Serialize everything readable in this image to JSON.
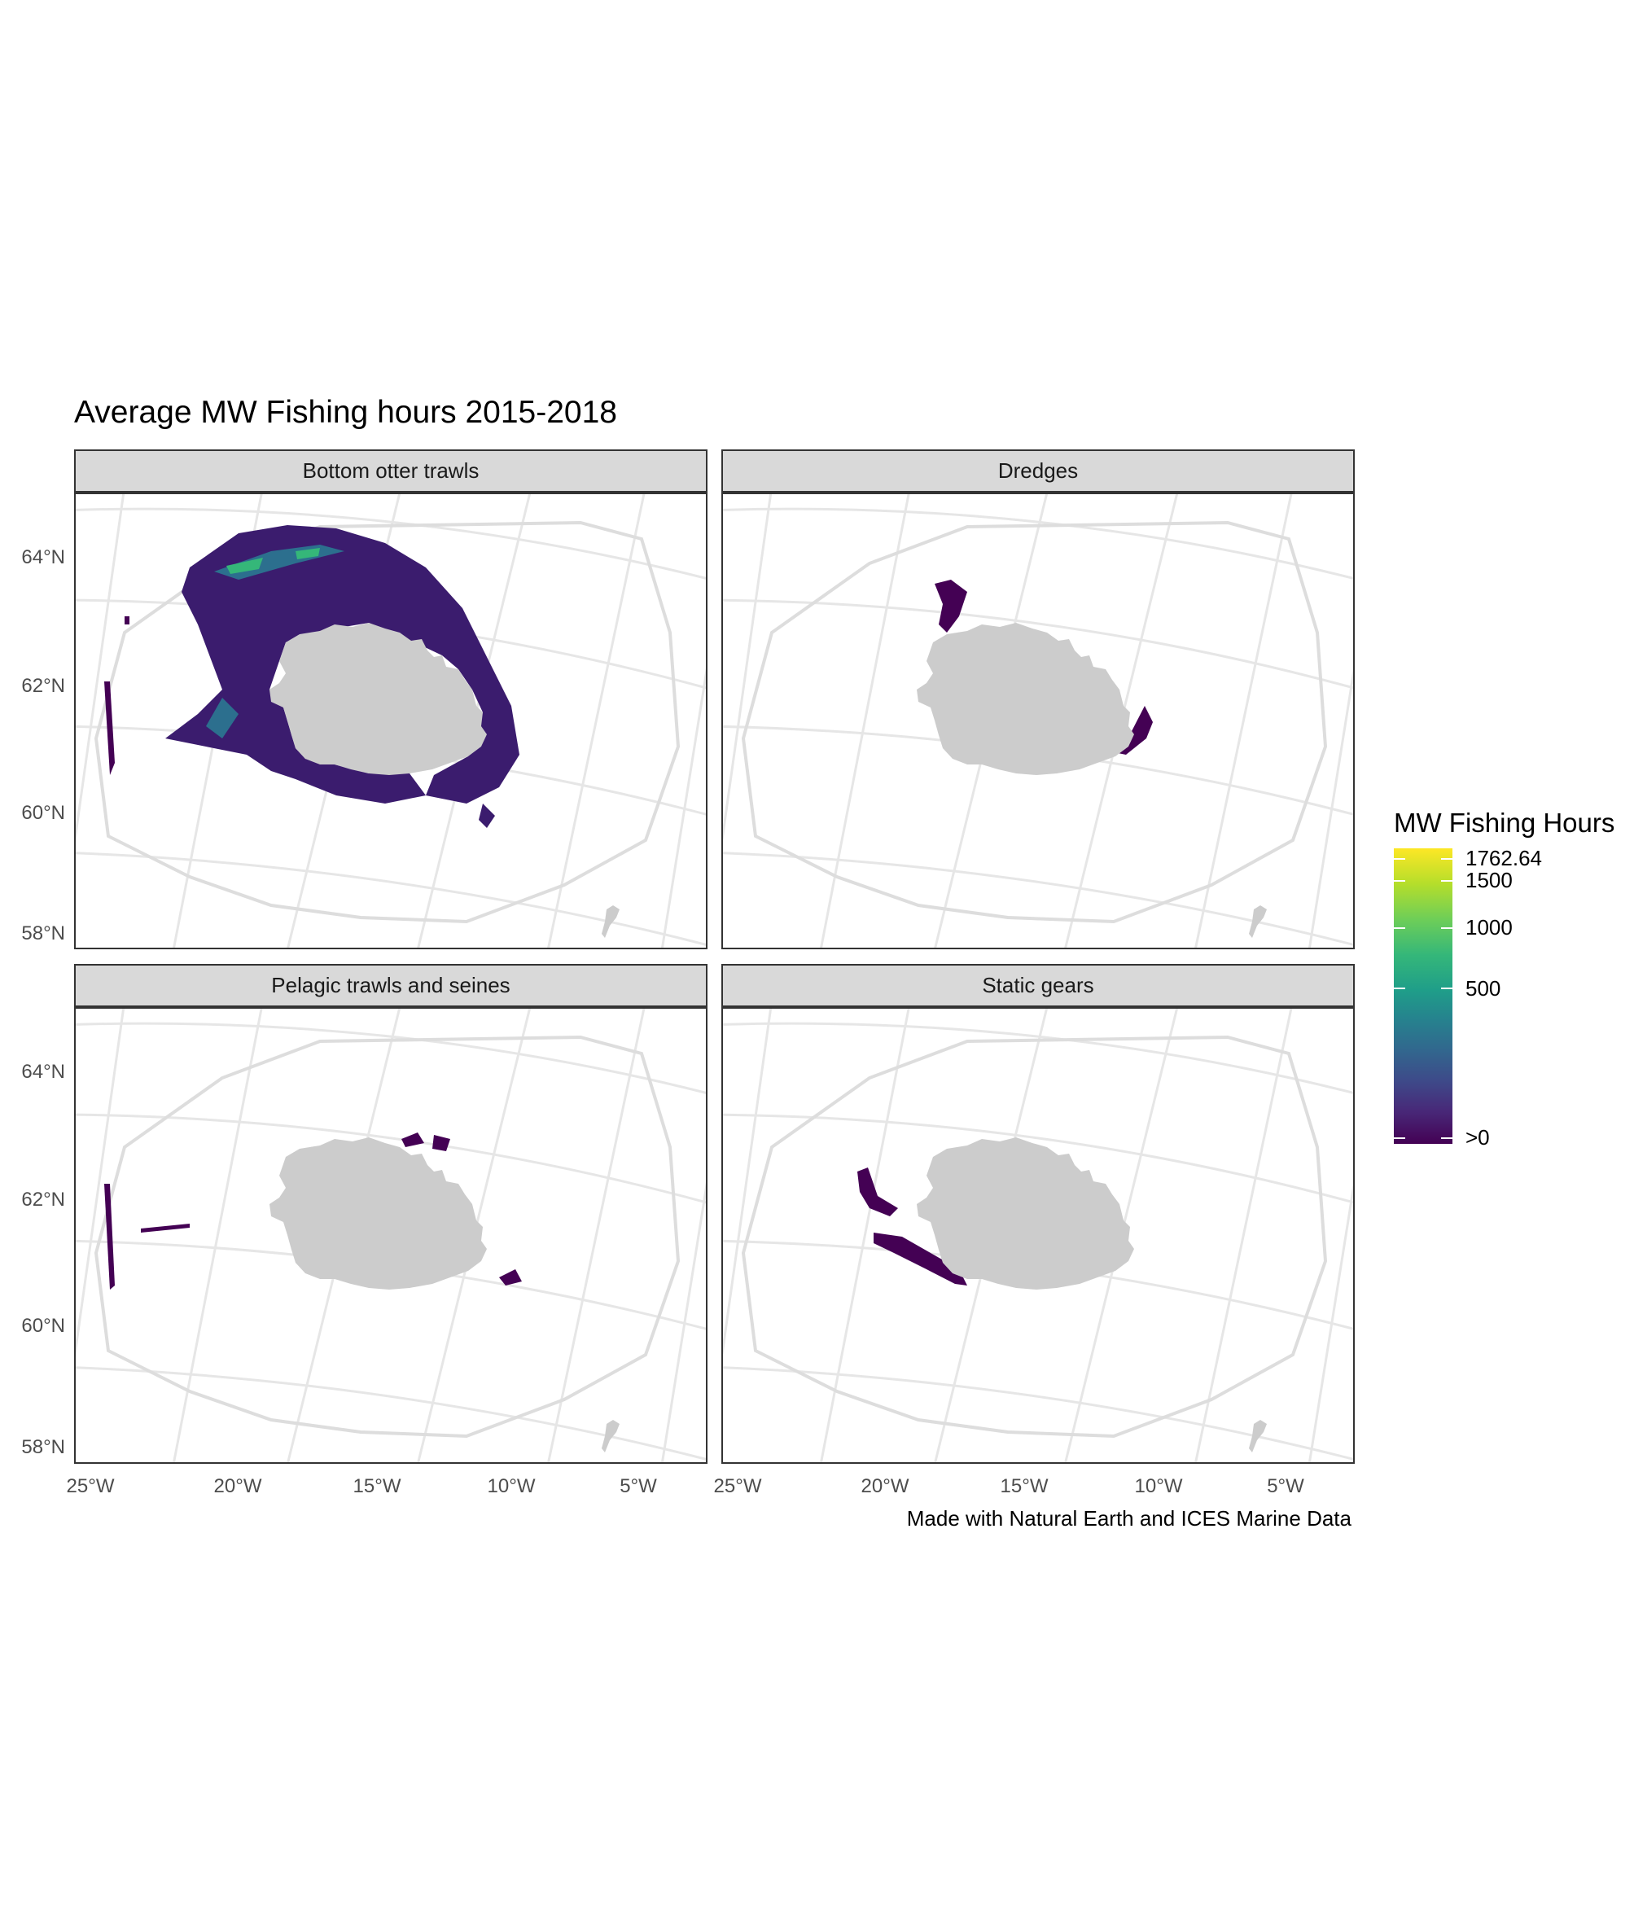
{
  "title": "Average MW Fishing hours 2015-2018",
  "caption": "Made with Natural Earth and ICES Marine Data",
  "legend": {
    "title": "MW Fishing Hours",
    "labels": [
      "1762.64",
      "1500",
      "1000",
      "500",
      ">0"
    ],
    "colors": [
      "#fde725",
      "#b5de2b",
      "#6ece58",
      "#35b779",
      "#1f9e89",
      "#26828e",
      "#31688e",
      "#3e4989",
      "#482878",
      "#440154"
    ]
  },
  "axes": {
    "y_labels": [
      "64°N",
      "62°N",
      "60°N",
      "58°N"
    ],
    "x_labels": [
      "25°W",
      "20°W",
      "15°W",
      "10°W",
      "5°W"
    ]
  },
  "panels": [
    {
      "name": "Bottom otter trawls",
      "intensity": "high"
    },
    {
      "name": "Dredges",
      "intensity": "low"
    },
    {
      "name": "Pelagic trawls and seines",
      "intensity": "low"
    },
    {
      "name": "Static gears",
      "intensity": "low"
    }
  ],
  "map_colors": {
    "land": "#cccccc",
    "grid": "#e6e6e6",
    "fishing_low": "#440154",
    "fishing_mid": "#3b528b",
    "fishing_high": "#21918c"
  }
}
